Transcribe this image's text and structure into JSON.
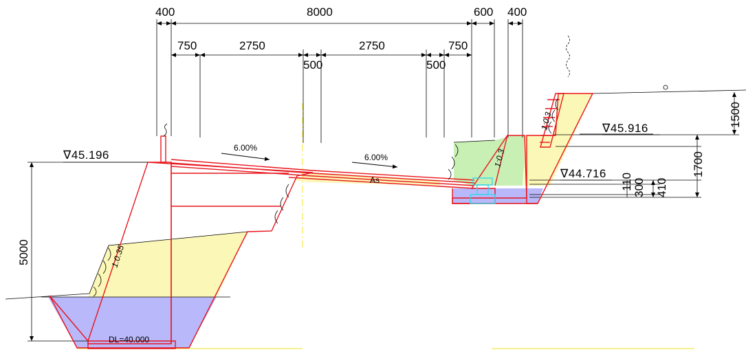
{
  "dimensions": {
    "top": {
      "d400_left": "400",
      "d8000": "8000",
      "d600": "600",
      "d400_right": "400"
    },
    "second": {
      "d750_left": "750",
      "d2750_left": "2750",
      "d2750_right": "2750",
      "d750_right": "750"
    },
    "median": {
      "d500_left": "500",
      "d500_right": "500"
    },
    "right_side": {
      "d1500": "1500",
      "d1700": "1700",
      "d110": "110",
      "d300": "300",
      "d410": "410"
    },
    "left_side": {
      "d5000": "5000"
    }
  },
  "levels": {
    "left": "∇45.196",
    "right_upper": "∇45.916",
    "right_lower": "∇44.716"
  },
  "slopes": {
    "left_embankment": "1:0.35",
    "right_wall": "1:0.3",
    "right_cut": "1:0.3"
  },
  "crossfall": {
    "left": "6.00%",
    "right": "6.00%"
  },
  "labels": {
    "pavement": "As",
    "datum": "DL=40.000"
  },
  "colors": {
    "structure_line": "#e8141c",
    "fill_soil": "#fbf7b6",
    "fill_water": "#b8b8fa",
    "fill_green": "#c8f0b4",
    "drain_box": "#39d6e8",
    "centerline": "#f2ea4a"
  }
}
